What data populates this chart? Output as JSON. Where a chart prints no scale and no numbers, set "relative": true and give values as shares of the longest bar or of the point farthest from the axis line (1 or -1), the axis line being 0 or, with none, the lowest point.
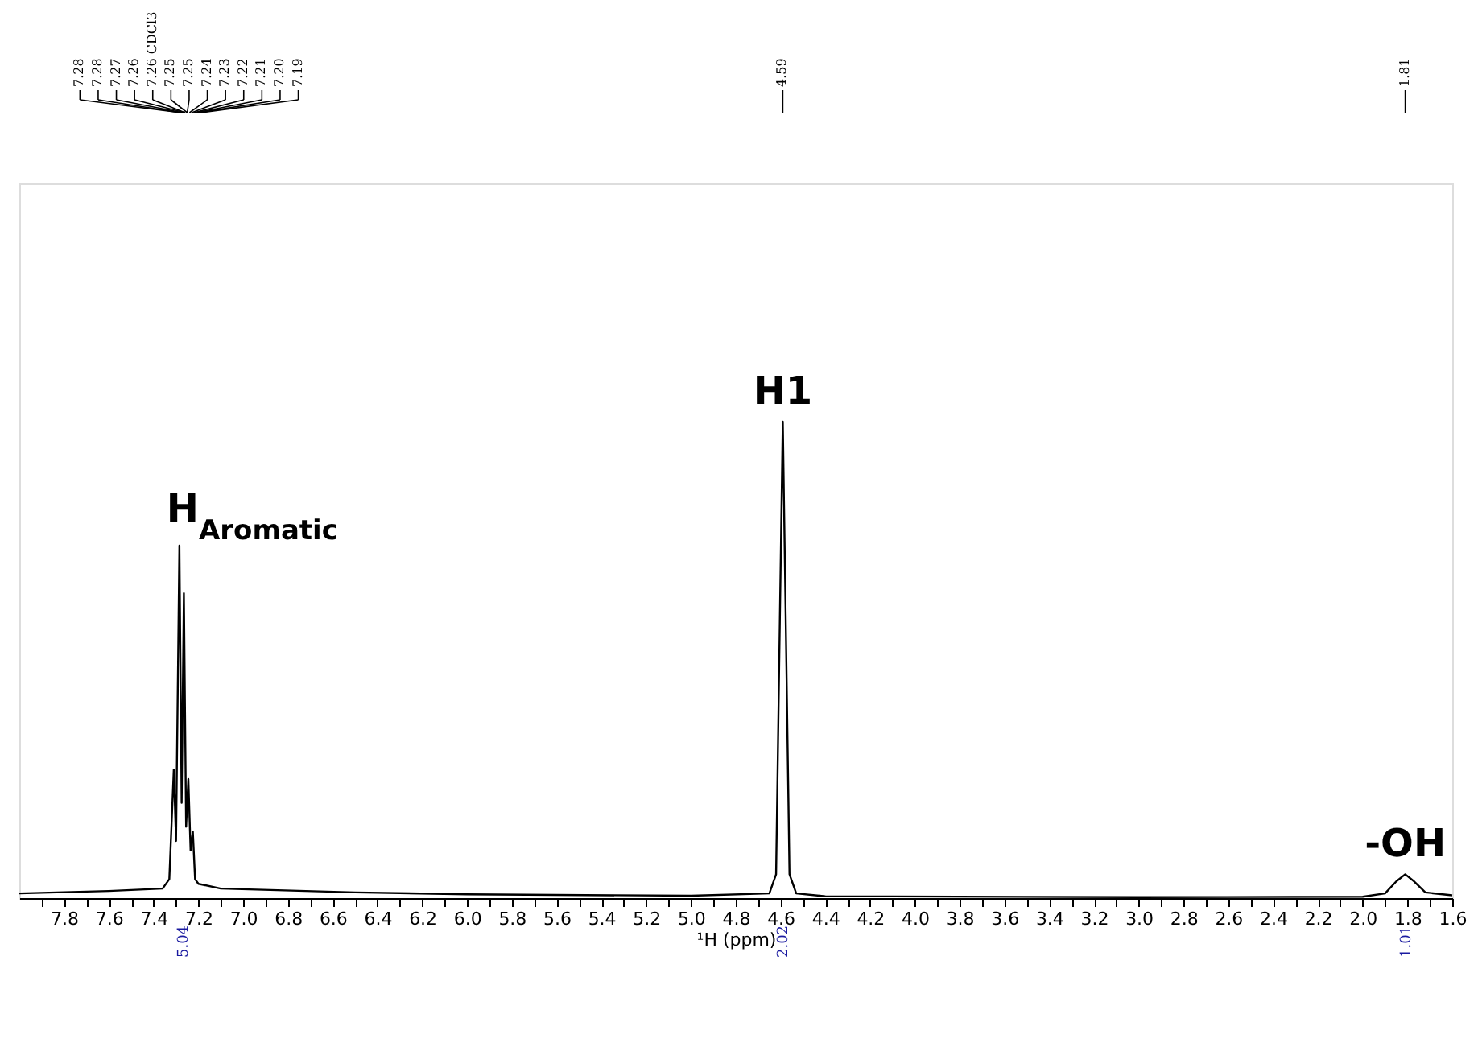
{
  "chart_data": {
    "type": "line",
    "relative": true,
    "xlabel": "¹H (ppm)",
    "grid": false,
    "marker": "none",
    "line_style": "solid",
    "tick_labels": "x",
    "xlim": [
      8.0,
      1.6
    ],
    "xticks": [
      {
        "value": 7.9,
        "label": null
      },
      7.8,
      {
        "value": 7.7,
        "label": null
      },
      7.6,
      {
        "value": 7.5,
        "label": null
      },
      7.4,
      {
        "value": 7.3,
        "label": null
      },
      7.2,
      {
        "value": 7.1,
        "label": null
      },
      {
        "value": 7.0,
        "label": "7.0"
      },
      {
        "value": 6.9,
        "label": null
      },
      6.8,
      {
        "value": 6.7,
        "label": null
      },
      6.6,
      {
        "value": 6.5,
        "label": null
      },
      6.4,
      {
        "value": 6.3,
        "label": null
      },
      6.2,
      {
        "value": 6.1,
        "label": null
      },
      {
        "value": 6.0,
        "label": "6.0"
      },
      {
        "value": 5.9,
        "label": null
      },
      5.8,
      {
        "value": 5.7,
        "label": null
      },
      5.6,
      {
        "value": 5.5,
        "label": null
      },
      5.4,
      {
        "value": 5.3,
        "label": null
      },
      5.2,
      {
        "value": 5.1,
        "label": null
      },
      {
        "value": 5.0,
        "label": "5.0"
      },
      {
        "value": 4.9,
        "label": null
      },
      4.8,
      {
        "value": 4.7,
        "label": null
      },
      4.6,
      {
        "value": 4.5,
        "label": null
      },
      4.4,
      {
        "value": 4.3,
        "label": null
      },
      4.2,
      {
        "value": 4.1,
        "label": null
      },
      {
        "value": 4.0,
        "label": "4.0"
      },
      {
        "value": 3.9,
        "label": null
      },
      3.8,
      {
        "value": 3.7,
        "label": null
      },
      3.6,
      {
        "value": 3.5,
        "label": null
      },
      3.4,
      {
        "value": 3.3,
        "label": null
      },
      3.2,
      {
        "value": 3.1,
        "label": null
      },
      {
        "value": 3.0,
        "label": "3.0"
      },
      {
        "value": 2.9,
        "label": null
      },
      2.8,
      {
        "value": 2.7,
        "label": null
      },
      2.6,
      {
        "value": 2.5,
        "label": null
      },
      2.4,
      {
        "value": 2.3,
        "label": null
      },
      2.2,
      {
        "value": 2.1,
        "label": null
      },
      {
        "value": 2.0,
        "label": "2.0"
      },
      {
        "value": 1.9,
        "label": null
      },
      1.8,
      {
        "value": 1.7,
        "label": null
      },
      1.6
    ],
    "series": [
      {
        "color": "#000000",
        "x": [
          8.0,
          7.6,
          7.36,
          7.33,
          7.31,
          7.3,
          7.285,
          7.275,
          7.265,
          7.255,
          7.245,
          7.235,
          7.225,
          7.215,
          7.2,
          7.1,
          6.5,
          6.0,
          5.0,
          4.65,
          4.62,
          4.59,
          4.56,
          4.53,
          4.4,
          3.0,
          2.0,
          1.9,
          1.85,
          1.81,
          1.77,
          1.72,
          1.6
        ],
        "values": [
          0.01,
          0.015,
          0.02,
          0.04,
          0.27,
          0.12,
          0.74,
          0.2,
          0.64,
          0.15,
          0.25,
          0.1,
          0.14,
          0.04,
          0.03,
          0.02,
          0.012,
          0.008,
          0.005,
          0.01,
          0.05,
          1.0,
          0.05,
          0.01,
          0.004,
          0.002,
          0.003,
          0.01,
          0.035,
          0.05,
          0.035,
          0.012,
          0.006
        ]
      }
    ],
    "annotations": [
      {
        "text": "7.28",
        "x": 7.28
      },
      {
        "text": "7.28",
        "x": 7.28
      },
      {
        "text": "7.27",
        "x": 7.27
      },
      {
        "text": "7.26",
        "x": 7.26
      },
      {
        "text": "7.26 CDCl3",
        "x": 7.26
      },
      {
        "text": "7.25",
        "x": 7.25
      },
      {
        "text": "7.25",
        "x": 7.25
      },
      {
        "text": "7.24",
        "x": 7.24
      },
      {
        "text": "7.23",
        "x": 7.23
      },
      {
        "text": "7.22",
        "x": 7.22
      },
      {
        "text": "7.21",
        "x": 7.21
      },
      {
        "text": "7.20",
        "x": 7.2
      },
      {
        "text": "7.19",
        "x": 7.19
      },
      {
        "text": "4.59",
        "x": 4.59
      },
      {
        "text": "1.81",
        "x": 1.81
      },
      "5.04",
      "2.02",
      "1.01",
      {
        "text": "H$_{Aromatic}$",
        "x": 7.27,
        "y": 0.74
      },
      {
        "text": "H1",
        "x": 4.59,
        "y": 1.0
      },
      {
        "text": "-OH",
        "x": 1.81,
        "y": 0.05
      }
    ]
  }
}
